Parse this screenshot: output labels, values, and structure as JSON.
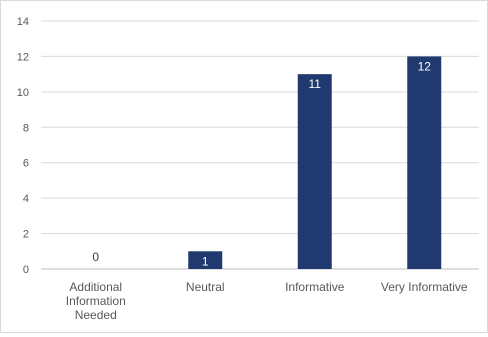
{
  "chart_data": {
    "type": "bar",
    "categories": [
      "Additional Information Needed",
      "Neutral",
      "Informative",
      "Very Informative"
    ],
    "category_label_lines": [
      [
        "Additional",
        "Information",
        "Needed"
      ],
      [
        "Neutral"
      ],
      [
        "Informative"
      ],
      [
        "Very Informative"
      ]
    ],
    "values": [
      0,
      1,
      11,
      12
    ],
    "data_labels": [
      "0",
      "1",
      "11",
      "12"
    ],
    "title": "",
    "xlabel": "",
    "ylabel": "",
    "ylim": [
      0,
      14
    ],
    "yticks": [
      0,
      2,
      4,
      6,
      8,
      10,
      12,
      14
    ],
    "ytick_labels": [
      "0",
      "2",
      "4",
      "6",
      "8",
      "10",
      "12",
      "14"
    ],
    "grid": true,
    "legend": "none",
    "colors": {
      "bar": "#203a70",
      "grid": "#d9d9d9",
      "axis": "#bfbfbf",
      "tick_text": "#595959",
      "label_inside": "#ffffff",
      "label_outside": "#404040"
    }
  }
}
